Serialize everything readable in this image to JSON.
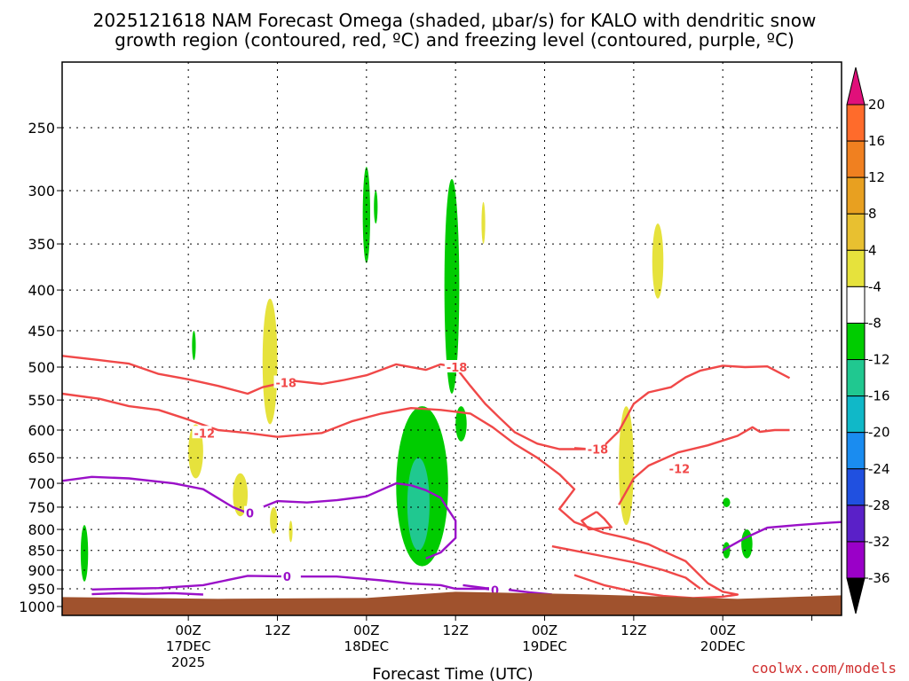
{
  "chart_data": {
    "type": "heatmap",
    "title_lines": [
      "2025121618 NAM Forecast Omega (shaded, μbar/s) for KALO with dendritic snow",
      "growth region (contoured, red, ºC) and freezing level (contoured, purple, ºC)"
    ],
    "xlabel": "Forecast Time (UTC)",
    "ylabel": "",
    "y_scale": "log-pressure",
    "y_range_hpa": [
      1030,
      200
    ],
    "y_ticks": [
      250,
      300,
      350,
      400,
      450,
      500,
      550,
      600,
      650,
      700,
      750,
      800,
      850,
      900,
      950,
      1000
    ],
    "x_range_hours": [
      -11,
      94
    ],
    "x_ticks": [
      {
        "hour": 6,
        "labels": [
          "00Z",
          "17DEC",
          "2025"
        ]
      },
      {
        "hour": 18,
        "labels": [
          "12Z"
        ]
      },
      {
        "hour": 30,
        "labels": [
          "00Z",
          "18DEC"
        ]
      },
      {
        "hour": 42,
        "labels": [
          "12Z"
        ]
      },
      {
        "hour": 54,
        "labels": [
          "00Z",
          "19DEC"
        ]
      },
      {
        "hour": 66,
        "labels": [
          "12Z"
        ]
      },
      {
        "hour": 78,
        "labels": [
          "00Z",
          "20DEC"
        ]
      },
      {
        "hour": 90,
        "labels": []
      }
    ],
    "grid": true,
    "colorbar": {
      "levels": [
        20,
        16,
        12,
        8,
        4,
        -4,
        -8,
        -12,
        -16,
        -20,
        -24,
        -28,
        -32,
        -36
      ],
      "colors": [
        "#ff6b2b",
        "#f08020",
        "#e8a020",
        "#e8c030",
        "#e6e23c",
        "#ffffff",
        "#00cc00",
        "#20c890",
        "#10b8c8",
        "#1a8cf0",
        "#2050e0",
        "#5a20c8",
        "#9a00c8",
        "#a0a0a0"
      ],
      "top_arrow_color": "#e0107a",
      "bottom_arrow_color": "#000000"
    },
    "omega_regions": [
      {
        "value": -6,
        "hours": [
          -8.5,
          -7.5
        ],
        "p": [
          930,
          790
        ],
        "color": "#00cc00"
      },
      {
        "value": 6,
        "hours": [
          6,
          8
        ],
        "p": [
          690,
          590
        ],
        "color": "#e6e23c"
      },
      {
        "value": 6,
        "hours": [
          12,
          14
        ],
        "p": [
          770,
          680
        ],
        "color": "#e6e23c"
      },
      {
        "value": 6,
        "hours": [
          16,
          18
        ],
        "p": [
          590,
          410
        ],
        "color": "#e6e23c"
      },
      {
        "value": 6,
        "hours": [
          17,
          18
        ],
        "p": [
          810,
          750
        ],
        "color": "#e6e23c"
      },
      {
        "value": 6,
        "hours": [
          19.6,
          20
        ],
        "p": [
          830,
          780
        ],
        "color": "#e6e23c"
      },
      {
        "value": -6,
        "hours": [
          6.5,
          7
        ],
        "p": [
          490,
          450
        ],
        "color": "#00cc00"
      },
      {
        "value": -6,
        "hours": [
          29.5,
          30.5
        ],
        "p": [
          370,
          280
        ],
        "color": "#00cc00"
      },
      {
        "value": -6,
        "hours": [
          31,
          31.5
        ],
        "p": [
          330,
          300
        ],
        "color": "#00cc00"
      },
      {
        "value": -6,
        "hours": [
          34,
          41
        ],
        "p": [
          890,
          560
        ],
        "color": "#00cc00"
      },
      {
        "value": -10,
        "hours": [
          35.5,
          38.5
        ],
        "p": [
          850,
          650
        ],
        "color": "#20c890"
      },
      {
        "value": -6,
        "hours": [
          40.5,
          42.5
        ],
        "p": [
          540,
          290
        ],
        "color": "#00cc00"
      },
      {
        "value": -6,
        "hours": [
          42,
          43.5
        ],
        "p": [
          620,
          560
        ],
        "color": "#00cc00"
      },
      {
        "value": 6,
        "hours": [
          45.5,
          46
        ],
        "p": [
          350,
          310
        ],
        "color": "#e6e23c"
      },
      {
        "value": 6,
        "hours": [
          64,
          66
        ],
        "p": [
          790,
          560
        ],
        "color": "#e6e23c"
      },
      {
        "value": 6,
        "hours": [
          68.5,
          70
        ],
        "p": [
          410,
          330
        ],
        "color": "#e6e23c"
      },
      {
        "value": -6,
        "hours": [
          78,
          79
        ],
        "p": [
          750,
          730
        ],
        "color": "#00cc00"
      },
      {
        "value": -6,
        "hours": [
          78,
          79
        ],
        "p": [
          870,
          830
        ],
        "color": "#00cc00"
      },
      {
        "value": -6,
        "hours": [
          80.5,
          82
        ],
        "p": [
          870,
          800
        ],
        "color": "#00cc00"
      }
    ],
    "contours": [
      {
        "label": "-18",
        "color": "#f04848",
        "kind": "temperature",
        "points": [
          [
            -11,
            484
          ],
          [
            -6,
            490
          ],
          [
            -2,
            495
          ],
          [
            2,
            510
          ],
          [
            6,
            518
          ],
          [
            10,
            528
          ],
          [
            14,
            540
          ],
          [
            16,
            530
          ],
          [
            20,
            520
          ],
          [
            24,
            525
          ],
          [
            27,
            519
          ],
          [
            30,
            512
          ],
          [
            34,
            496
          ],
          [
            38,
            504
          ],
          [
            40,
            496
          ],
          [
            42,
            500
          ],
          [
            44,
            528
          ],
          [
            46,
            556
          ],
          [
            48,
            580
          ],
          [
            50,
            604
          ],
          [
            53,
            624
          ],
          [
            56,
            634
          ],
          [
            60,
            634
          ],
          [
            62,
            628
          ],
          [
            64,
            602
          ],
          [
            66,
            556
          ],
          [
            68,
            538
          ],
          [
            71,
            530
          ],
          [
            73,
            515
          ],
          [
            75,
            505
          ],
          [
            78,
            498
          ],
          [
            81,
            500
          ],
          [
            84,
            499
          ],
          [
            87,
            516
          ]
        ],
        "label_at": [
          18,
          523
        ]
      },
      {
        "label": "-18",
        "color": "#f04848",
        "kind": "temperature",
        "points": [
          [
            41,
            500
          ],
          [
            42,
            501
          ],
          [
            43,
            500
          ]
        ],
        "label_at": [
          41,
          500
        ]
      },
      {
        "label": "-18",
        "color": "#f04848",
        "kind": "temperature",
        "points": [
          [
            58,
            632
          ],
          [
            60,
            634
          ]
        ],
        "label_at": [
          60,
          634
        ]
      },
      {
        "label": "-12",
        "color": "#f04848",
        "kind": "temperature",
        "points": [
          [
            -11,
            540
          ],
          [
            -6,
            548
          ],
          [
            -2,
            560
          ],
          [
            2,
            566
          ],
          [
            6,
            582
          ],
          [
            10,
            600
          ],
          [
            14,
            605
          ],
          [
            18,
            612
          ],
          [
            24,
            605
          ],
          [
            28,
            585
          ],
          [
            32,
            572
          ],
          [
            36,
            563
          ],
          [
            40,
            566
          ],
          [
            44,
            572
          ],
          [
            47,
            595
          ],
          [
            50,
            625
          ],
          [
            53,
            650
          ],
          [
            56,
            682
          ],
          [
            58,
            712
          ],
          [
            56,
            754
          ],
          [
            58,
            783
          ],
          [
            62,
            808
          ],
          [
            65,
            820
          ],
          [
            68,
            835
          ],
          [
            70,
            852
          ],
          [
            73,
            877
          ],
          [
            76,
            935
          ],
          [
            78,
            958
          ],
          [
            80,
            966
          ],
          [
            78,
            972
          ],
          [
            74,
            976
          ],
          [
            70,
            970
          ],
          [
            66,
            958
          ],
          [
            62,
            940
          ],
          [
            58,
            913
          ]
        ],
        "label_at": [
          7,
          605
        ]
      },
      {
        "label": "-12",
        "color": "#f04848",
        "kind": "temperature",
        "points": [
          [
            64,
            745
          ],
          [
            66,
            690
          ],
          [
            68,
            665
          ],
          [
            72,
            640
          ],
          [
            76,
            627
          ],
          [
            80,
            610
          ],
          [
            82,
            595
          ],
          [
            83,
            603
          ],
          [
            85,
            600
          ],
          [
            87,
            600
          ]
        ],
        "label_at": [
          71,
          671
        ]
      },
      {
        "label": "",
        "color": "#f04848",
        "kind": "temperature",
        "points": [
          [
            61,
            760
          ],
          [
            59,
            780
          ],
          [
            60,
            800
          ],
          [
            63,
            795
          ],
          [
            62,
            775
          ],
          [
            61,
            760
          ]
        ]
      },
      {
        "label": "",
        "color": "#f04848",
        "kind": "temperature",
        "points": [
          [
            55,
            840
          ],
          [
            62,
            865
          ],
          [
            66,
            880
          ],
          [
            70,
            900
          ],
          [
            73,
            920
          ],
          [
            75,
            950
          ]
        ]
      },
      {
        "label": "0",
        "color": "#9a10c8",
        "kind": "freezing",
        "points": [
          [
            -11,
            695
          ],
          [
            -7,
            687
          ],
          [
            -2,
            690
          ],
          [
            4,
            700
          ],
          [
            8,
            712
          ],
          [
            12,
            750
          ],
          [
            14,
            763
          ],
          [
            18,
            737
          ],
          [
            22,
            740
          ],
          [
            26,
            735
          ],
          [
            30,
            727
          ],
          [
            34,
            700
          ],
          [
            36,
            704
          ],
          [
            38,
            714
          ],
          [
            40,
            730
          ],
          [
            41,
            755
          ],
          [
            42,
            780
          ],
          [
            42,
            820
          ],
          [
            40,
            855
          ],
          [
            38,
            870
          ]
        ],
        "label_at": [
          14,
          763
        ]
      },
      {
        "label": "0",
        "color": "#9a10c8",
        "kind": "freezing",
        "points": [
          [
            -7,
            952
          ],
          [
            -3,
            950
          ],
          [
            2,
            948
          ],
          [
            8,
            940
          ],
          [
            14,
            915
          ],
          [
            20,
            917
          ],
          [
            26,
            917
          ],
          [
            32,
            927
          ],
          [
            36,
            936
          ],
          [
            40,
            940
          ],
          [
            42,
            950
          ],
          [
            46,
            950
          ],
          [
            48,
            955
          ]
        ],
        "label_at": [
          19,
          917
        ]
      },
      {
        "label": "0",
        "color": "#9a10c8",
        "kind": "freezing",
        "points": [
          [
            43,
            940
          ],
          [
            46,
            948
          ],
          [
            48,
            950
          ],
          [
            52,
            960
          ],
          [
            55,
            966
          ]
        ],
        "label_at": [
          47,
          954
        ]
      },
      {
        "label": "0",
        "color": "#9a10c8",
        "kind": "freezing",
        "points": [
          [
            78,
            850
          ],
          [
            81,
            820
          ],
          [
            84,
            796
          ],
          [
            88,
            790
          ],
          [
            92,
            785
          ],
          [
            94,
            783
          ]
        ],
        "label_at": [
          0,
          0
        ]
      },
      {
        "label": "0",
        "color": "#9a10c8",
        "kind": "freezing",
        "points": [
          [
            -7,
            965
          ],
          [
            -3,
            962
          ],
          [
            0,
            964
          ],
          [
            4,
            962
          ],
          [
            8,
            966
          ]
        ],
        "label_at": [
          0,
          0
        ]
      }
    ],
    "ground": {
      "color": "#a0522d",
      "top_hpa": 968
    },
    "credit": "coolwx.com/models"
  }
}
